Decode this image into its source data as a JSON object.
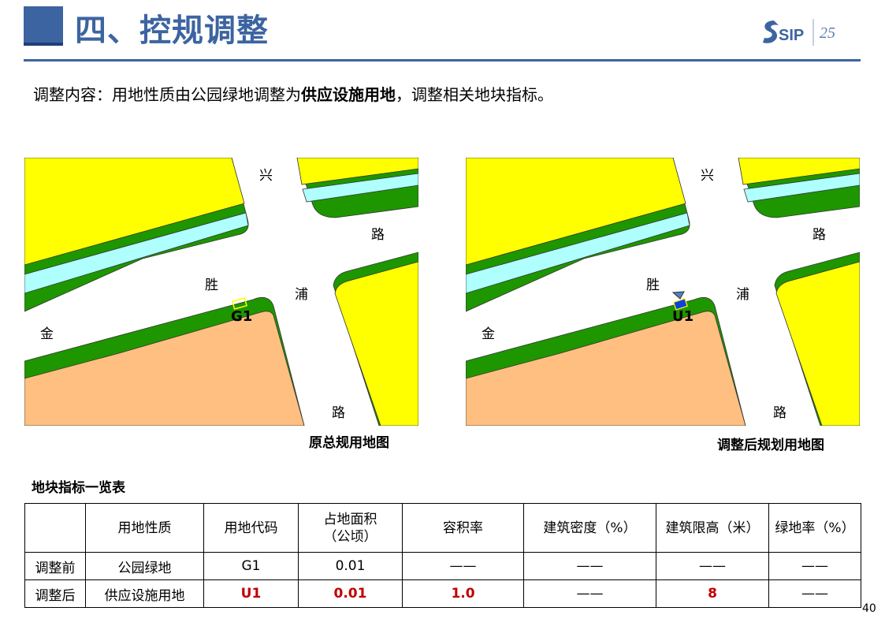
{
  "header": {
    "title": "四、控规调整",
    "logo_text": "SIP",
    "logo_badge": "25"
  },
  "intro": {
    "prefix": "调整内容：用地性质由公园绿地调整为",
    "bold": "供应设施用地",
    "suffix": "，调整相关地块指标。"
  },
  "maps": {
    "labels": {
      "xing": "兴",
      "lu1": "路",
      "sheng": "胜",
      "pu": "浦",
      "jin": "金",
      "lu2": "路"
    },
    "left": {
      "parcel_code": "G1",
      "caption": "原总规用地图",
      "parcel_color": "#FFFF00"
    },
    "right": {
      "parcel_code": "U1",
      "caption": "调整后规划用地图",
      "parcel_color": "#1040E0"
    },
    "colors": {
      "yellow": "#FFFF00",
      "green": "#1E9600",
      "cyan": "#AFFFFF",
      "orange": "#FFBF80"
    }
  },
  "table": {
    "title": "地块指标一览表",
    "headers": [
      "",
      "用地性质",
      "用地代码",
      "占地面积（公顷）",
      "容积率",
      "建筑密度（%）",
      "建筑限高（米）",
      "绿地率（%）"
    ],
    "header_area_line1": "占地面积",
    "header_area_line2": "（公顷）",
    "rows": [
      [
        "调整前",
        "公园绿地",
        "G1",
        "0.01",
        "——",
        "——",
        "——",
        "——"
      ],
      [
        "调整后",
        "供应设施用地",
        "U1",
        "0.01",
        "1.0",
        "——",
        "8",
        "——"
      ]
    ],
    "highlight_color": "#C00000"
  },
  "page_number": "40"
}
